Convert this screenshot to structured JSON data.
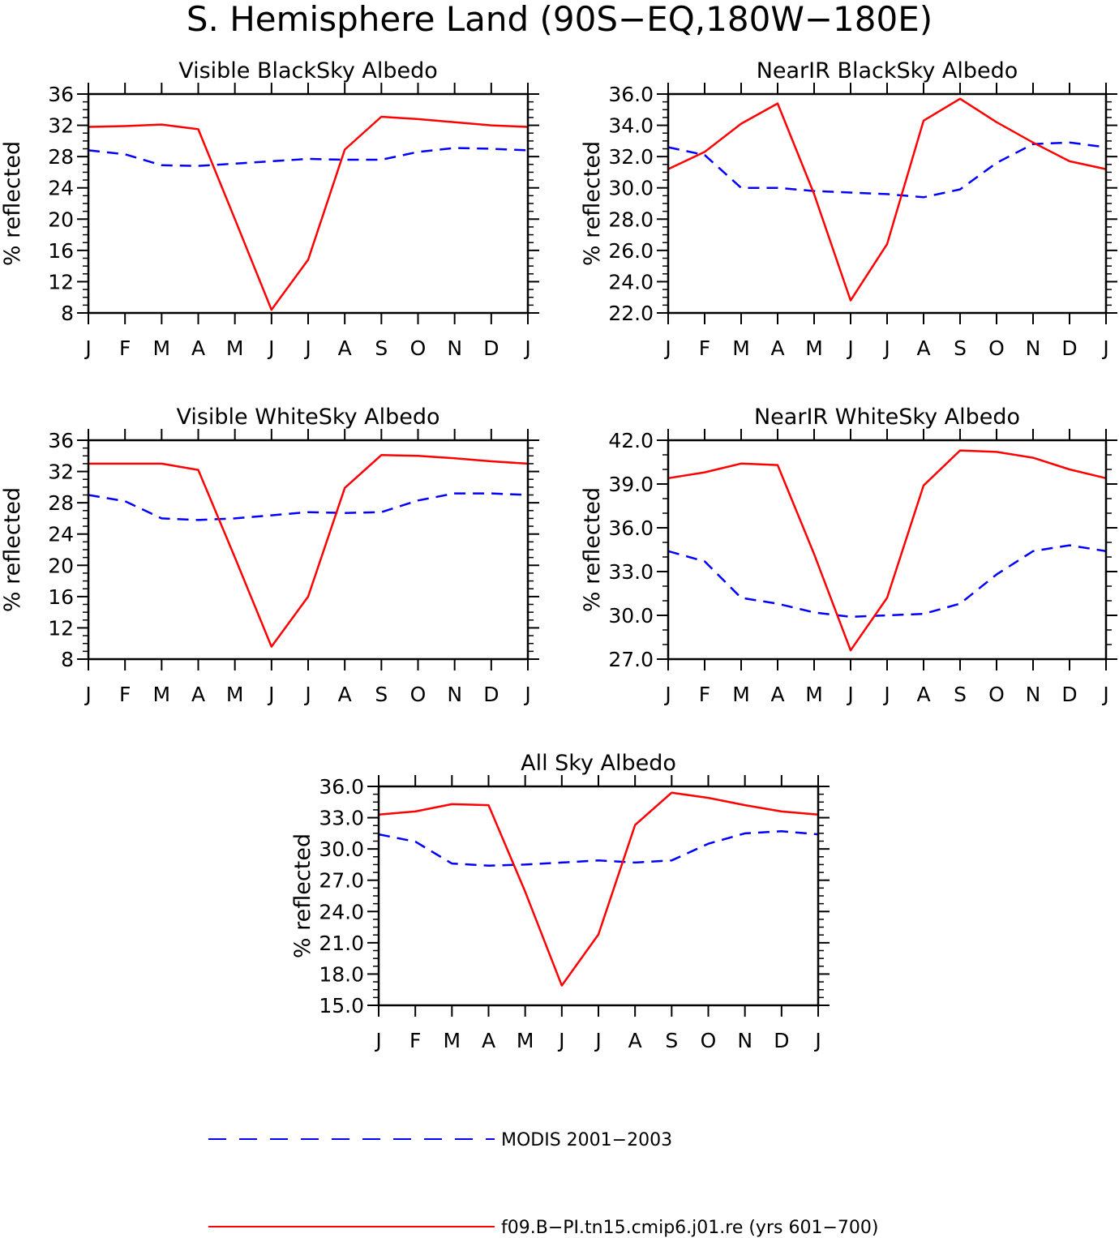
{
  "figure": {
    "title": "S. Hemisphere Land (90S−EQ,180W−180E)"
  },
  "legend": {
    "entries": [
      {
        "label": "MODIS 2001−2003",
        "color": "#0000ff",
        "dash": "dashed"
      },
      {
        "label": "f09.B−PI.tn15.cmip6.j01.re (yrs 601−700)",
        "color": "#ff0000",
        "dash": "solid"
      }
    ]
  },
  "chart_data": [
    {
      "type": "line",
      "title": "Visible BlackSky Albedo",
      "ylabel": "% reflected",
      "categories": [
        "J",
        "F",
        "M",
        "A",
        "M",
        "J",
        "J",
        "A",
        "S",
        "O",
        "N",
        "D",
        "J"
      ],
      "ylim": [
        8,
        36
      ],
      "yticks": [
        "36",
        "32",
        "28",
        "24",
        "20",
        "16",
        "12",
        "8"
      ],
      "series": [
        {
          "name": "MODIS 2001−2003",
          "color": "#0000ff",
          "values": [
            28.8,
            28.3,
            26.9,
            26.8,
            27.1,
            27.4,
            27.7,
            27.6,
            27.6,
            28.6,
            29.1,
            29.0,
            28.8
          ]
        },
        {
          "name": "f09.B−PI.tn15.cmip6.j01.re (yrs 601−700)",
          "color": "#ff0000",
          "values": [
            31.8,
            31.9,
            32.1,
            31.5,
            20.0,
            8.4,
            14.8,
            28.9,
            33.1,
            32.8,
            32.4,
            32.0,
            31.8
          ]
        }
      ]
    },
    {
      "type": "line",
      "title": "NearIR BlackSky Albedo",
      "ylabel": "% reflected",
      "categories": [
        "J",
        "F",
        "M",
        "A",
        "M",
        "J",
        "J",
        "A",
        "S",
        "O",
        "N",
        "D",
        "J"
      ],
      "ylim": [
        22,
        36
      ],
      "yticks": [
        "36.0",
        "34.0",
        "32.0",
        "30.0",
        "28.0",
        "26.0",
        "24.0",
        "22.0"
      ],
      "series": [
        {
          "name": "MODIS 2001−2003",
          "color": "#0000ff",
          "values": [
            32.6,
            32.1,
            30.0,
            30.0,
            29.8,
            29.7,
            29.6,
            29.4,
            29.9,
            31.6,
            32.8,
            32.9,
            32.6
          ]
        },
        {
          "name": "f09.B−PI.tn15.cmip6.j01.re (yrs 601−700)",
          "color": "#ff0000",
          "values": [
            31.2,
            32.3,
            34.1,
            35.4,
            29.6,
            22.8,
            26.4,
            34.3,
            35.7,
            34.2,
            32.9,
            31.7,
            31.2
          ]
        }
      ]
    },
    {
      "type": "line",
      "title": "Visible WhiteSky Albedo",
      "ylabel": "% reflected",
      "categories": [
        "J",
        "F",
        "M",
        "A",
        "M",
        "J",
        "J",
        "A",
        "S",
        "O",
        "N",
        "D",
        "J"
      ],
      "ylim": [
        8,
        36
      ],
      "yticks": [
        "36",
        "32",
        "28",
        "24",
        "20",
        "16",
        "12",
        "8"
      ],
      "series": [
        {
          "name": "MODIS 2001−2003",
          "color": "#0000ff",
          "values": [
            29.0,
            28.2,
            26.0,
            25.8,
            26.0,
            26.4,
            26.8,
            26.7,
            26.8,
            28.3,
            29.2,
            29.2,
            29.0
          ]
        },
        {
          "name": "f09.B−PI.tn15.cmip6.j01.re (yrs 601−700)",
          "color": "#ff0000",
          "values": [
            33.0,
            33.0,
            33.0,
            32.2,
            21.0,
            9.6,
            16.0,
            29.9,
            34.1,
            34.0,
            33.7,
            33.3,
            33.0
          ]
        }
      ]
    },
    {
      "type": "line",
      "title": "NearIR WhiteSky Albedo",
      "ylabel": "% reflected",
      "categories": [
        "J",
        "F",
        "M",
        "A",
        "M",
        "J",
        "J",
        "A",
        "S",
        "O",
        "N",
        "D",
        "J"
      ],
      "ylim": [
        27,
        42
      ],
      "yticks": [
        "42.0",
        "39.0",
        "36.0",
        "33.0",
        "30.0",
        "27.0"
      ],
      "series": [
        {
          "name": "MODIS 2001−2003",
          "color": "#0000ff",
          "values": [
            34.4,
            33.7,
            31.2,
            30.8,
            30.2,
            29.9,
            30.0,
            30.1,
            30.8,
            32.8,
            34.4,
            34.8,
            34.4
          ]
        },
        {
          "name": "f09.B−PI.tn15.cmip6.j01.re (yrs 601−700)",
          "color": "#ff0000",
          "values": [
            39.4,
            39.8,
            40.4,
            40.3,
            34.2,
            27.6,
            31.2,
            38.9,
            41.3,
            41.2,
            40.8,
            40.0,
            39.4
          ]
        }
      ]
    },
    {
      "type": "line",
      "title": "All Sky Albedo",
      "ylabel": "% reflected",
      "categories": [
        "J",
        "F",
        "M",
        "A",
        "M",
        "J",
        "J",
        "A",
        "S",
        "O",
        "N",
        "D",
        "J"
      ],
      "ylim": [
        15,
        36
      ],
      "yticks": [
        "36.0",
        "33.0",
        "30.0",
        "27.0",
        "24.0",
        "21.0",
        "18.0",
        "15.0"
      ],
      "series": [
        {
          "name": "MODIS 2001−2003",
          "color": "#0000ff",
          "values": [
            31.4,
            30.7,
            28.6,
            28.4,
            28.5,
            28.7,
            28.9,
            28.7,
            28.9,
            30.5,
            31.5,
            31.7,
            31.4
          ]
        },
        {
          "name": "f09.B−PI.tn15.cmip6.j01.re (yrs 601−700)",
          "color": "#ff0000",
          "values": [
            33.3,
            33.6,
            34.3,
            34.2,
            25.9,
            16.9,
            21.8,
            32.3,
            35.4,
            34.9,
            34.2,
            33.6,
            33.3
          ]
        }
      ]
    }
  ]
}
